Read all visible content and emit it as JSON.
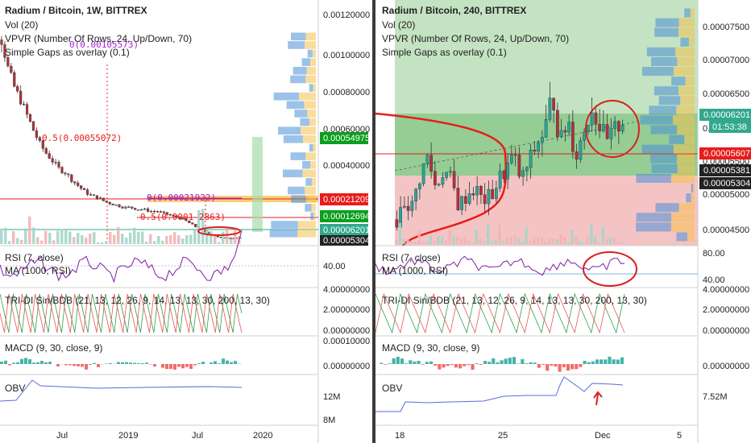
{
  "charts": [
    {
      "title": "Radium / Bitcoin, 1W, BITTREX",
      "indicators": [
        "Vol (20)",
        "VPVR (Number Of Rows, 24, Up/Down, 70)",
        "Simple Gaps as overlay (0.1)"
      ],
      "price_ticks": [
        "0.00120000",
        "0.00100000",
        "0.00080000",
        "0.00060000",
        "0.00040000"
      ],
      "price_badges": [
        {
          "label": "0.00054975",
          "color": "#0b9e1f"
        },
        {
          "label": "0.00021209",
          "color": "#e81c1c"
        },
        {
          "label": "0.00012694",
          "color": "#0b9e1f"
        },
        {
          "label": "0.00006201",
          "color": "#31a88e"
        },
        {
          "label": "0.00005304",
          "color": "#222222"
        }
      ],
      "gap_labels": [
        "0(0.00105573)",
        "0.5(0.00055072)",
        "0(0.00021922)",
        "0.5(0.0001 2863)"
      ],
      "rsi": {
        "label": "RSI (7, close)",
        "ma_label": "MA (1000, RSI)",
        "ticks": [
          "40.00"
        ]
      },
      "tri": {
        "label": "TRI-DI Sin/BDB (21, 13, 12, 26, 9, 14, 13, 13, 30, 200, 13, 30)",
        "ticks": [
          "4.00000000",
          "2.00000000",
          "0.00000000"
        ]
      },
      "macd": {
        "label": "MACD (9, 30, close, 9)",
        "ticks": [
          "0.00010000",
          "0.00000000"
        ]
      },
      "obv": {
        "label": "OBV",
        "ticks": [
          "12M",
          "8M"
        ]
      },
      "time_ticks": [
        "Jul",
        "2019",
        "Jul",
        "2020"
      ]
    },
    {
      "title": "Radium / Bitcoin, 240, BITTREX",
      "indicators": [
        "Vol (20)",
        "VPVR (Number Of Rows, 24, Up/Down, 70)",
        "Simple Gaps as overlay (0.1)"
      ],
      "price_ticks": [
        "0.00007500",
        "0.00007000",
        "0.00006500",
        "0.0",
        "0.00005500",
        "0.00005000",
        "0.00004500"
      ],
      "price_badges": [
        {
          "label": "0.00006201",
          "color": "#31a88e"
        },
        {
          "label": "01:53:38",
          "color": "#31a88e"
        },
        {
          "label": "0.00005607",
          "color": "#e81c1c"
        },
        {
          "label": "0.00005381",
          "color": "#222222"
        },
        {
          "label": "0.00005304",
          "color": "#222222"
        }
      ],
      "rsi": {
        "label": "RSI (7, close)",
        "ma_label": "MA (1000, RSI)",
        "ticks": [
          "80.00",
          "40.00"
        ]
      },
      "tri": {
        "label": "TRI-DI Sin/BDB (21, 13, 12, 26, 9, 14, 13, 13, 30, 200, 13, 30)",
        "ticks": [
          "4.00000000",
          "2.00000000",
          "0.00000000"
        ]
      },
      "macd": {
        "label": "MACD (9, 30, close, 9)",
        "ticks": [
          "0.00000000"
        ]
      },
      "obv": {
        "label": "OBV",
        "ticks": [
          "7.52M"
        ]
      },
      "time_ticks": [
        "18",
        "25",
        "Dec",
        "5"
      ]
    }
  ],
  "chart_data": [
    {
      "type": "candlestick",
      "title": "Radium / Bitcoin, 1W, BITTREX",
      "ylim": [
        4e-05,
        0.00125
      ],
      "close_path": [
        0.0011,
        0.00095,
        0.00085,
        0.00078,
        0.0007,
        0.00062,
        0.00055,
        0.0005,
        0.00046,
        0.00042,
        0.0004,
        0.00036,
        0.00033,
        0.0003,
        0.00028,
        0.00027,
        0.00025,
        0.00024,
        0.00023,
        0.00022,
        0.00022,
        0.00021,
        0.00021,
        0.0002,
        0.0002,
        0.00019,
        0.00018,
        0.00017,
        0.00016,
        0.00014,
        0.00012,
        0.0001,
        8e-05,
        7e-05,
        6e-05,
        6e-05,
        6e-05,
        6.2e-05
      ],
      "levels": [
        0.00054975,
        0.00021209,
        0.00012694,
        6.201e-05,
        5.304e-05
      ]
    },
    {
      "type": "candlestick",
      "title": "Radium / Bitcoin, 240, BITTREX",
      "ylim": [
        4.25e-05,
        7.9e-05
      ],
      "close_path": [
        4.6e-05,
        4.9e-05,
        4.8e-05,
        5.3e-05,
        5.6e-05,
        5.1e-05,
        5.4e-05,
        5.2e-05,
        4.8e-05,
        5e-05,
        5.1e-05,
        4.9e-05,
        4.95e-05,
        5.2e-05,
        5.4e-05,
        5.6e-05,
        5.2e-05,
        5.5e-05,
        5.8e-05,
        6e-05,
        6.6e-05,
        5.8e-05,
        6.2e-05,
        5.6e-05,
        6e-05,
        6.4e-05,
        6.1e-05,
        5.8e-05,
        6e-05,
        6.2e-05
      ],
      "levels": [
        6.201e-05,
        5.607e-05,
        5.381e-05,
        5.304e-05
      ]
    }
  ]
}
